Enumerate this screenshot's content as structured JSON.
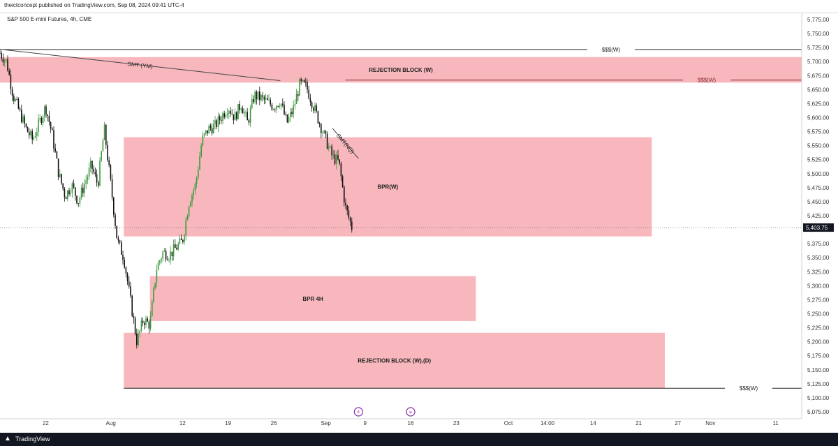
{
  "header": {
    "publisher": "theictconcept published on TradingView.com, Sep 08, 2024 09:41 UTC-4"
  },
  "footer": {
    "brand": "TradingView",
    "logo_icon": "tradingview-logo-icon"
  },
  "colors": {
    "bull": "#3a9a3a",
    "bear": "#111111",
    "zone": "#f7b7bd",
    "line": "#333333",
    "smt": "#444444"
  },
  "chart_data": {
    "type": "candlestick",
    "title": "S&P 500 E-mini Futures, 4h, CME",
    "x_range": [
      "2024-07-15",
      "2024-11-15"
    ],
    "y_range": [
      5062.5,
      5787.5
    ],
    "x_ticks": [
      {
        "label": "22",
        "date": "2024-07-22"
      },
      {
        "label": "Aug",
        "date": "2024-08-01"
      },
      {
        "label": "12",
        "date": "2024-08-12"
      },
      {
        "label": "19",
        "date": "2024-08-19"
      },
      {
        "label": "26",
        "date": "2024-08-26"
      },
      {
        "label": "Sep",
        "date": "2024-09-03"
      },
      {
        "label": "9",
        "date": "2024-09-09"
      },
      {
        "label": "16",
        "date": "2024-09-16"
      },
      {
        "label": "23",
        "date": "2024-09-23"
      },
      {
        "label": "Oct",
        "date": "2024-10-01"
      },
      {
        "label": "14:00",
        "date": "2024-10-07"
      },
      {
        "label": "14",
        "date": "2024-10-14"
      },
      {
        "label": "21",
        "date": "2024-10-21"
      },
      {
        "label": "27",
        "date": "2024-10-27"
      },
      {
        "label": "Nov",
        "date": "2024-11-01"
      },
      {
        "label": "11",
        "date": "2024-11-11"
      }
    ],
    "y_ticks": [
      "5,775.00",
      "5,750.00",
      "5,725.00",
      "5,700.00",
      "5,675.00",
      "5,650.00",
      "5,625.00",
      "5,600.00",
      "5,575.00",
      "5,550.00",
      "5,525.00",
      "5,500.00",
      "5,475.00",
      "5,450.00",
      "5,425.00",
      "5,400.00",
      "5,375.00",
      "5,350.00",
      "5,325.00",
      "5,300.00",
      "5,275.00",
      "5,250.00",
      "5,225.00",
      "5,200.00",
      "5,175.00",
      "5,150.00",
      "5,125.00",
      "5,100.00",
      "5,075.00"
    ],
    "last_price": {
      "label": "5,403.75",
      "value": 5403.75
    },
    "price_path": [
      [
        "2024-07-15",
        5715
      ],
      [
        "2024-07-16",
        5700
      ],
      [
        "2024-07-17",
        5640
      ],
      [
        "2024-07-18",
        5610
      ],
      [
        "2024-07-19",
        5580
      ],
      [
        "2024-07-20",
        5560
      ],
      [
        "2024-07-22",
        5620
      ],
      [
        "2024-07-23",
        5570
      ],
      [
        "2024-07-24",
        5500
      ],
      [
        "2024-07-25",
        5460
      ],
      [
        "2024-07-26",
        5480
      ],
      [
        "2024-07-27",
        5450
      ],
      [
        "2024-07-29",
        5515
      ],
      [
        "2024-07-30",
        5480
      ],
      [
        "2024-07-31",
        5580
      ],
      [
        "2024-08-01",
        5480
      ],
      [
        "2024-08-02",
        5380
      ],
      [
        "2024-08-03",
        5350
      ],
      [
        "2024-08-05",
        5200
      ],
      [
        "2024-08-06",
        5240
      ],
      [
        "2024-08-07",
        5230
      ],
      [
        "2024-08-08",
        5330
      ],
      [
        "2024-08-09",
        5360
      ],
      [
        "2024-08-10",
        5355
      ],
      [
        "2024-08-12",
        5380
      ],
      [
        "2024-08-13",
        5450
      ],
      [
        "2024-08-14",
        5480
      ],
      [
        "2024-08-15",
        5560
      ],
      [
        "2024-08-16",
        5580
      ],
      [
        "2024-08-17",
        5585
      ],
      [
        "2024-08-19",
        5620
      ],
      [
        "2024-08-20",
        5600
      ],
      [
        "2024-08-21",
        5625
      ],
      [
        "2024-08-22",
        5590
      ],
      [
        "2024-08-23",
        5640
      ],
      [
        "2024-08-24",
        5635
      ],
      [
        "2024-08-26",
        5620
      ],
      [
        "2024-08-27",
        5630
      ],
      [
        "2024-08-28",
        5590
      ],
      [
        "2024-08-29",
        5615
      ],
      [
        "2024-08-30",
        5660
      ],
      [
        "2024-08-31",
        5655
      ],
      [
        "2024-09-03",
        5560
      ],
      [
        "2024-09-04",
        5530
      ],
      [
        "2024-09-05",
        5520
      ],
      [
        "2024-09-06",
        5440
      ],
      [
        "2024-09-07",
        5403.75
      ]
    ],
    "series_labels": [],
    "zones": [
      {
        "label": "REJECTION BLOCK (W)",
        "from": "2024-07-15",
        "to": "2024-11-15",
        "low": 5662.5,
        "high": 5708
      },
      {
        "label": "BPR(W)",
        "from": "2024-08-03",
        "to": "2024-10-23",
        "low": 5388,
        "high": 5565
      },
      {
        "label": "BPR 4H",
        "from": "2024-08-07",
        "to": "2024-09-26",
        "low": 5237,
        "high": 5317
      },
      {
        "label": "REJECTION BLOCK (W),(D)",
        "from": "2024-08-03",
        "to": "2024-10-25",
        "low": 5117,
        "high": 5216
      }
    ],
    "levels": [
      {
        "label": "$$$(W)",
        "value": 5721.5,
        "from": "2024-07-15",
        "to": "2024-11-15"
      },
      {
        "label": "$$$(W)",
        "value": 5667,
        "from": "2024-09-06",
        "to": "2024-11-15"
      },
      {
        "label": "$$$(W)",
        "value": 5117,
        "from": "2024-08-03",
        "to": "2024-11-15"
      }
    ],
    "annotations": [
      {
        "label": "SMT (YM)",
        "from": [
          "2024-07-15",
          5722
        ],
        "to": [
          "2024-08-27",
          5666
        ]
      },
      {
        "label": "SMT(NQ)",
        "from": [
          "2024-09-04",
          5581
        ],
        "to": [
          "2024-09-08",
          5527
        ]
      }
    ],
    "event_icons": [
      {
        "name": "economic-event-icon",
        "date": "2024-09-08"
      },
      {
        "name": "forward-event-icon",
        "date": "2024-09-16"
      }
    ]
  }
}
